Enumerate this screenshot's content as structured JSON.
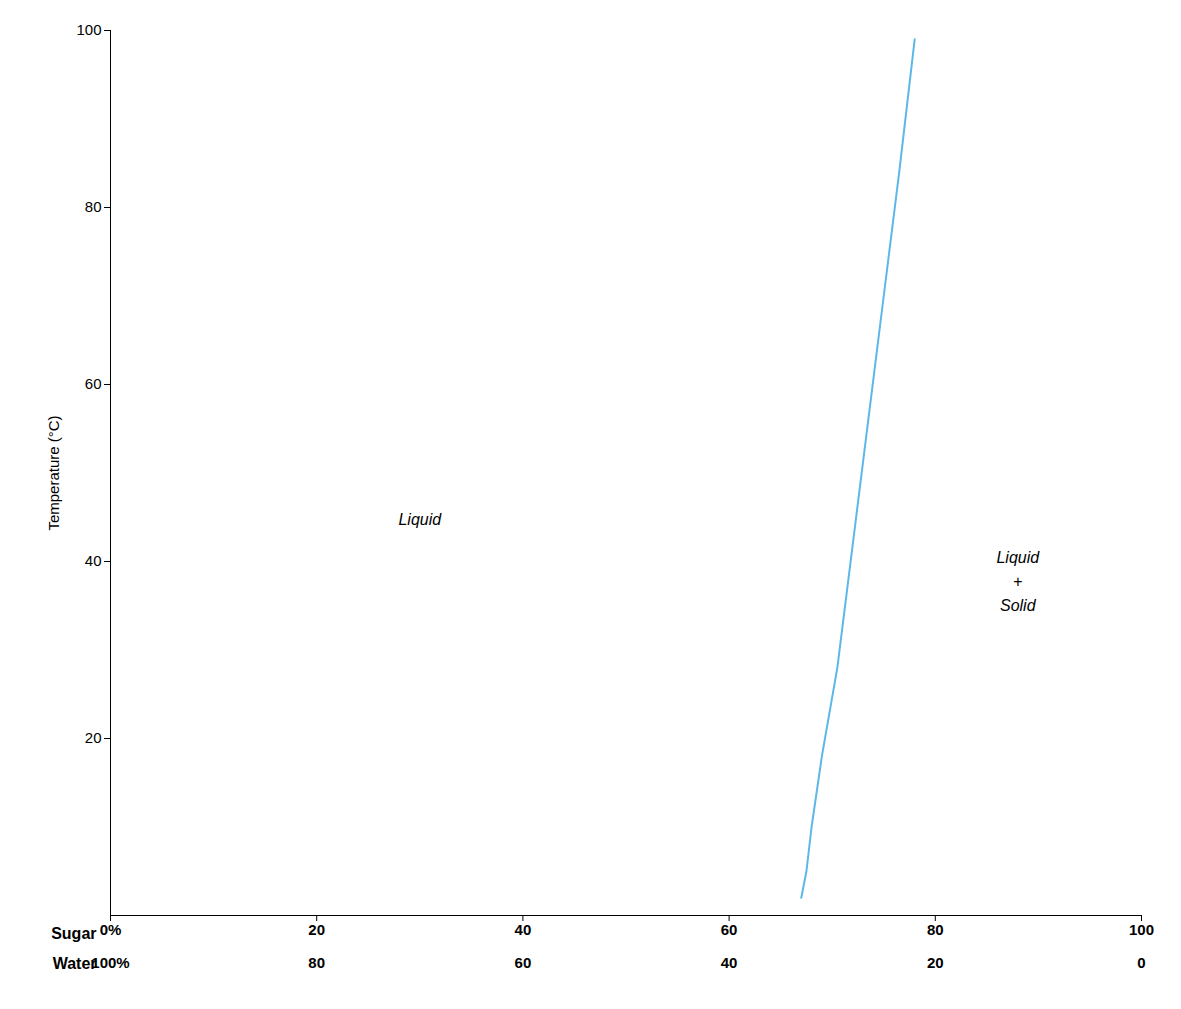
{
  "chart_data": {
    "type": "line",
    "x": [
      67.0,
      67.5,
      68.0,
      69.0,
      70.5,
      72.0,
      73.5,
      75.0,
      76.5,
      78.0
    ],
    "values": [
      2.0,
      5.0,
      10.0,
      18.0,
      28.0,
      42.0,
      56.0,
      70.0,
      84.0,
      99.0
    ],
    "color": "#5bb8e8",
    "ylabel": "Temperature (°C)",
    "xlabel": "Sugar",
    "x2label": "Water",
    "xlim": [
      0,
      100
    ],
    "ylim": [
      0,
      100
    ],
    "x2lim": [
      100,
      0
    ],
    "yticks": [
      20,
      40,
      60,
      80,
      100
    ],
    "xticks": [
      {
        "value": 0,
        "label": "0%"
      },
      20,
      40,
      60,
      80,
      100
    ],
    "x2ticks": [
      {
        "value": 100,
        "label": "100%"
      },
      80,
      60,
      40,
      20,
      0
    ],
    "annotations": [
      {
        "text": "Liquid",
        "x": 30,
        "y": 45
      },
      {
        "text": "Liquid\n+\nSolid",
        "x": 88,
        "y": 38
      }
    ],
    "grid": false
  }
}
